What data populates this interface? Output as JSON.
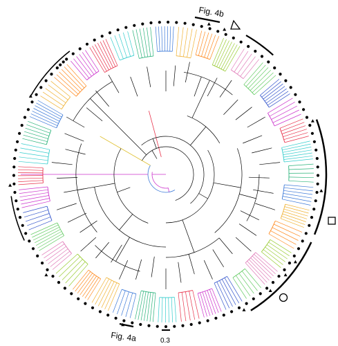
{
  "annotations": {
    "fig4b": "Fig. 4b",
    "fig4a": "Fig. 4a",
    "scale_value": "0.3"
  },
  "legend_symbols": [
    "triangle-open",
    "square-open",
    "circle-open"
  ],
  "clade_colors": [
    "#cc33cc",
    "#e8314a",
    "#33cccc",
    "#2ab37a",
    "#3a78d8",
    "#f0b233",
    "#ff8a1f",
    "#99cc33",
    "#e07ab8",
    "#66cc66",
    "#3355cc"
  ],
  "tip_markers": [
    "filled-circle",
    "filled-triangle",
    "open-circle",
    "open-triangle",
    "open-square"
  ]
}
